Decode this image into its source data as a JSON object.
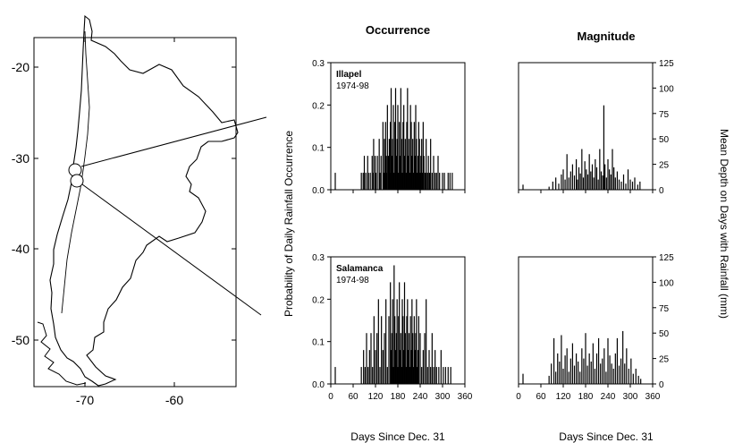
{
  "map": {
    "x_ticks": [
      "-70",
      "-60"
    ],
    "y_ticks": [
      "-20",
      "-30",
      "-40",
      "-50"
    ]
  },
  "column_titles": {
    "occurrence": "Occurrence",
    "magnitude": "Magnitude"
  },
  "axis_labels": {
    "left_y": "Probability of Daily Rainfall Occurrence",
    "right_y": "Mean Depth on Days with Rainfall (mm)",
    "x_left": "Days Since Dec. 31",
    "x_right": "Days Since Dec. 31"
  },
  "stations": [
    {
      "name": "Illapel",
      "period": "1974-98"
    },
    {
      "name": "Salamanca",
      "period": "1974-98"
    }
  ],
  "tick_labels": {
    "occ_y": [
      "0.0",
      "0.1",
      "0.2",
      "0.3"
    ],
    "mag_y": [
      "0",
      "25",
      "50",
      "75",
      "100",
      "125"
    ],
    "x": [
      "0",
      "60",
      "120",
      "180",
      "240",
      "300",
      "360"
    ]
  },
  "chart_data": [
    {
      "type": "bar",
      "panel": "occ_illapel",
      "title": "Occurrence",
      "xlim": [
        0,
        360
      ],
      "ylim": [
        0,
        0.3
      ],
      "x": [
        12,
        82,
        87,
        90,
        94,
        99,
        101,
        106,
        111,
        114,
        115,
        119,
        121,
        125,
        130,
        132,
        135,
        140,
        142,
        144,
        145,
        147,
        149,
        150,
        152,
        155,
        157,
        158,
        160,
        162,
        164,
        166,
        168,
        170,
        172,
        174,
        176,
        178,
        180,
        182,
        184,
        186,
        188,
        190,
        192,
        194,
        196,
        198,
        200,
        202,
        204,
        206,
        208,
        210,
        212,
        214,
        216,
        218,
        220,
        222,
        224,
        226,
        228,
        230,
        232,
        234,
        236,
        238,
        240,
        242,
        244,
        246,
        248,
        250,
        253,
        256,
        259,
        262,
        265,
        268,
        272,
        276,
        280,
        284,
        288,
        292,
        300,
        305,
        315,
        320,
        326
      ],
      "values": [
        0.04,
        0.04,
        0.04,
        0.08,
        0.04,
        0.08,
        0.04,
        0.04,
        0.08,
        0.04,
        0.12,
        0.08,
        0.04,
        0.08,
        0.12,
        0.04,
        0.08,
        0.16,
        0.04,
        0.12,
        0.04,
        0.16,
        0.08,
        0.04,
        0.2,
        0.08,
        0.12,
        0.04,
        0.16,
        0.24,
        0.08,
        0.12,
        0.2,
        0.04,
        0.16,
        0.24,
        0.08,
        0.12,
        0.2,
        0.04,
        0.16,
        0.08,
        0.24,
        0.12,
        0.04,
        0.16,
        0.2,
        0.08,
        0.12,
        0.04,
        0.16,
        0.24,
        0.08,
        0.12,
        0.04,
        0.2,
        0.16,
        0.08,
        0.12,
        0.04,
        0.16,
        0.08,
        0.2,
        0.12,
        0.04,
        0.08,
        0.16,
        0.12,
        0.04,
        0.08,
        0.12,
        0.04,
        0.16,
        0.08,
        0.04,
        0.12,
        0.04,
        0.08,
        0.04,
        0.12,
        0.04,
        0.08,
        0.04,
        0.04,
        0.08,
        0.04,
        0.04,
        0.04,
        0.04,
        0.04,
        0.04
      ]
    },
    {
      "type": "bar",
      "panel": "mag_illapel",
      "title": "Magnitude",
      "xlim": [
        0,
        360
      ],
      "ylim": [
        0,
        125
      ],
      "x": [
        12,
        82,
        92,
        100,
        108,
        115,
        120,
        125,
        130,
        135,
        140,
        145,
        150,
        155,
        158,
        162,
        166,
        170,
        174,
        178,
        182,
        186,
        190,
        194,
        198,
        202,
        206,
        210,
        214,
        218,
        222,
        226,
        229,
        232,
        236,
        240,
        244,
        248,
        252,
        256,
        260,
        265,
        270,
        276,
        282,
        288,
        294,
        300,
        306,
        312,
        320,
        326
      ],
      "values": [
        5,
        3,
        8,
        12,
        6,
        15,
        20,
        10,
        35,
        12,
        18,
        25,
        14,
        30,
        10,
        22,
        16,
        40,
        12,
        28,
        20,
        15,
        35,
        18,
        25,
        12,
        30,
        22,
        10,
        40,
        18,
        14,
        83,
        25,
        12,
        30,
        20,
        15,
        40,
        22,
        12,
        18,
        10,
        8,
        15,
        6,
        20,
        10,
        8,
        12,
        5,
        8
      ]
    },
    {
      "type": "bar",
      "panel": "occ_salamanca",
      "title": "Occurrence",
      "xlim": [
        0,
        360
      ],
      "ylim": [
        0,
        0.3
      ],
      "x": [
        12,
        82,
        88,
        92,
        96,
        100,
        104,
        108,
        112,
        116,
        120,
        124,
        128,
        132,
        136,
        140,
        144,
        148,
        152,
        156,
        160,
        162,
        164,
        166,
        168,
        170,
        172,
        174,
        176,
        178,
        180,
        182,
        184,
        186,
        188,
        190,
        192,
        194,
        196,
        198,
        200,
        202,
        204,
        206,
        208,
        210,
        212,
        214,
        216,
        218,
        220,
        222,
        224,
        226,
        228,
        230,
        232,
        234,
        236,
        240,
        244,
        248,
        252,
        256,
        260,
        264,
        268,
        272,
        276,
        280,
        284,
        290,
        296,
        302,
        308,
        315,
        322
      ],
      "values": [
        0.04,
        0.04,
        0.08,
        0.04,
        0.12,
        0.04,
        0.08,
        0.12,
        0.04,
        0.16,
        0.08,
        0.12,
        0.2,
        0.04,
        0.16,
        0.08,
        0.12,
        0.2,
        0.04,
        0.16,
        0.24,
        0.08,
        0.12,
        0.2,
        0.04,
        0.28,
        0.16,
        0.08,
        0.12,
        0.2,
        0.04,
        0.16,
        0.24,
        0.08,
        0.12,
        0.04,
        0.2,
        0.16,
        0.08,
        0.24,
        0.12,
        0.04,
        0.16,
        0.2,
        0.08,
        0.12,
        0.04,
        0.16,
        0.08,
        0.2,
        0.12,
        0.04,
        0.16,
        0.08,
        0.12,
        0.2,
        0.04,
        0.08,
        0.16,
        0.12,
        0.04,
        0.08,
        0.12,
        0.2,
        0.04,
        0.08,
        0.04,
        0.12,
        0.04,
        0.08,
        0.04,
        0.04,
        0.08,
        0.04,
        0.04,
        0.04,
        0.04
      ]
    },
    {
      "type": "bar",
      "panel": "mag_salamanca",
      "title": "Magnitude",
      "xlim": [
        0,
        360
      ],
      "ylim": [
        0,
        125
      ],
      "x": [
        12,
        82,
        88,
        95,
        100,
        105,
        110,
        115,
        120,
        125,
        130,
        135,
        140,
        145,
        150,
        155,
        160,
        165,
        170,
        175,
        180,
        185,
        190,
        195,
        200,
        205,
        210,
        215,
        220,
        225,
        230,
        235,
        240,
        245,
        250,
        255,
        260,
        265,
        270,
        275,
        280,
        285,
        290,
        296,
        302,
        308,
        315,
        322,
        328
      ],
      "values": [
        10,
        8,
        20,
        45,
        12,
        30,
        22,
        48,
        15,
        28,
        35,
        12,
        25,
        40,
        18,
        30,
        22,
        12,
        35,
        25,
        50,
        18,
        30,
        22,
        40,
        15,
        30,
        45,
        20,
        25,
        35,
        12,
        45,
        28,
        20,
        15,
        30,
        45,
        18,
        25,
        52,
        20,
        35,
        15,
        25,
        10,
        15,
        8,
        5
      ]
    }
  ]
}
